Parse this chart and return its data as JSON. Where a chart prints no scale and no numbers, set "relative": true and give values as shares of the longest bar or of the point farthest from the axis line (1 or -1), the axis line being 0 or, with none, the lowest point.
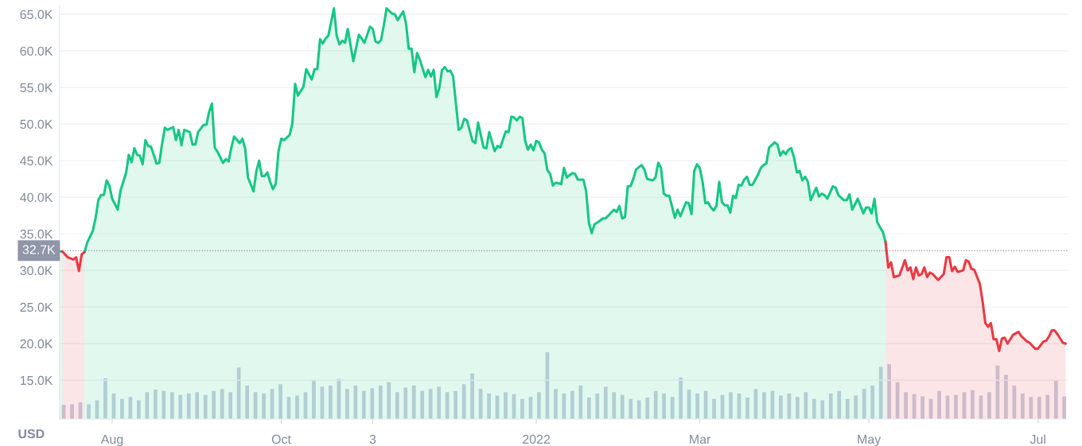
{
  "chart_data": [
    {
      "type": "area",
      "ylabel": "USD",
      "grid": "y",
      "xlim": [
        "2021-07-13",
        "2022-07-12"
      ],
      "ylim": [
        9.7,
        66.1
      ],
      "xticks": [
        {
          "value": "2021-08-01",
          "label": "Aug"
        },
        {
          "value": "2021-10-01",
          "label": "Oct"
        },
        {
          "value": "2021-11-03",
          "label": "3"
        },
        {
          "value": "2022-01-01",
          "label": "2022"
        },
        {
          "value": "2022-03-01",
          "label": "Mar"
        },
        {
          "value": "2022-05-01",
          "label": "May"
        },
        {
          "value": "2022-07-01",
          "label": "Jul"
        }
      ],
      "yticks": [
        {
          "value": 15,
          "label": "15.0K"
        },
        {
          "value": 20,
          "label": "20.0K"
        },
        {
          "value": 25,
          "label": "25.0K"
        },
        {
          "value": 30,
          "label": "30.0K"
        },
        {
          "value": 35,
          "label": "35.0K"
        },
        {
          "value": 40,
          "label": "40.0K"
        },
        {
          "value": 45,
          "label": "45.0K"
        },
        {
          "value": 50,
          "label": "50.0K"
        },
        {
          "value": 55,
          "label": "55.0K"
        },
        {
          "value": 60,
          "label": "60.0K"
        },
        {
          "value": 65,
          "label": "65.0K"
        }
      ],
      "ref_lines": [
        {
          "axis": "y",
          "value": 32.7,
          "label": "32.7K",
          "color": "#8f96a8",
          "line_style": "dotted"
        }
      ],
      "series": [
        {
          "color": "#16c784",
          "x": [
            "2021-07-13",
            "2021-07-14",
            "2021-07-16",
            "2021-07-22",
            "2021-07-23",
            "2021-07-25",
            "2021-07-26",
            "2021-07-27",
            "2021-07-28",
            "2021-07-29",
            "2021-07-30",
            "2021-07-31",
            "2021-08-01",
            "2021-08-03",
            "2021-08-04",
            "2021-08-06",
            "2021-08-07",
            "2021-08-08",
            "2021-08-09",
            "2021-08-10",
            "2021-08-11",
            "2021-08-12",
            "2021-08-13",
            "2021-08-14",
            "2021-08-15",
            "2021-08-16",
            "2021-08-17",
            "2021-08-18",
            "2021-08-19",
            "2021-08-20",
            "2021-08-21",
            "2021-08-23",
            "2021-08-24",
            "2021-08-25",
            "2021-08-26",
            "2021-08-27",
            "2021-08-29",
            "2021-08-30",
            "2021-08-31",
            "2021-09-01",
            "2021-09-03",
            "2021-09-04",
            "2021-09-05",
            "2021-09-06",
            "2021-09-07",
            "2021-09-08",
            "2021-09-10",
            "2021-09-11",
            "2021-09-12",
            "2021-09-13",
            "2021-09-14",
            "2021-09-16",
            "2021-09-17",
            "2021-09-18",
            "2021-09-19",
            "2021-09-21",
            "2021-09-22",
            "2021-09-23",
            "2021-09-24",
            "2021-09-25",
            "2021-09-26",
            "2021-09-27",
            "2021-09-28",
            "2021-09-29",
            "2021-09-30",
            "2021-10-01",
            "2021-10-02",
            "2021-10-04",
            "2021-10-05",
            "2021-10-06",
            "2021-10-07",
            "2021-10-09",
            "2021-10-10",
            "2021-10-12",
            "2021-10-13",
            "2021-10-14",
            "2021-10-15",
            "2021-10-16",
            "2021-10-17",
            "2021-10-18",
            "2021-10-20",
            "2021-10-21",
            "2021-10-22",
            "2021-10-23",
            "2021-10-24",
            "2021-10-25",
            "2021-10-27",
            "2021-10-29",
            "2021-10-30",
            "2021-10-31",
            "2021-11-02",
            "2021-11-03",
            "2021-11-04",
            "2021-11-05",
            "2021-11-06",
            "2021-11-07",
            "2021-11-08",
            "2021-11-10",
            "2021-11-11",
            "2021-11-12",
            "2021-11-14",
            "2021-11-15",
            "2021-11-16",
            "2021-11-17",
            "2021-11-18",
            "2021-11-19",
            "2021-11-20",
            "2021-11-22",
            "2021-11-23",
            "2021-11-24",
            "2021-11-25",
            "2021-11-26",
            "2021-11-27",
            "2021-11-28",
            "2021-11-29",
            "2021-11-30",
            "2021-12-01",
            "2021-12-02",
            "2021-12-04",
            "2021-12-05",
            "2021-12-06",
            "2021-12-07",
            "2021-12-09",
            "2021-12-10",
            "2021-12-11",
            "2021-12-13",
            "2021-12-14",
            "2021-12-15",
            "2021-12-17",
            "2021-12-18",
            "2021-12-19",
            "2021-12-21",
            "2021-12-22",
            "2021-12-23",
            "2021-12-24",
            "2021-12-25",
            "2021-12-26",
            "2021-12-27",
            "2021-12-28",
            "2021-12-29",
            "2021-12-30",
            "2021-12-31",
            "2022-01-01",
            "2022-01-02",
            "2022-01-03",
            "2022-01-04",
            "2022-01-05",
            "2022-01-06",
            "2022-01-07",
            "2022-01-08",
            "2022-01-10",
            "2022-01-11",
            "2022-01-12",
            "2022-01-14",
            "2022-01-15",
            "2022-01-16",
            "2022-01-18",
            "2022-01-19",
            "2022-01-20",
            "2022-01-21",
            "2022-01-22",
            "2022-01-24",
            "2022-01-25",
            "2022-01-26",
            "2022-01-28",
            "2022-01-29",
            "2022-01-30",
            "2022-01-31",
            "2022-02-01",
            "2022-02-02",
            "2022-02-03",
            "2022-02-04",
            "2022-02-05",
            "2022-02-06",
            "2022-02-08",
            "2022-02-09",
            "2022-02-10",
            "2022-02-12",
            "2022-02-13",
            "2022-02-14",
            "2022-02-15",
            "2022-02-16",
            "2022-02-17",
            "2022-02-18",
            "2022-02-20",
            "2022-02-21",
            "2022-02-22",
            "2022-02-24",
            "2022-02-25",
            "2022-02-26",
            "2022-02-27",
            "2022-02-28",
            "2022-03-01",
            "2022-03-02",
            "2022-03-03",
            "2022-03-04",
            "2022-03-05",
            "2022-03-06",
            "2022-03-07",
            "2022-03-08",
            "2022-03-09",
            "2022-03-10",
            "2022-03-11",
            "2022-03-12",
            "2022-03-13",
            "2022-03-14",
            "2022-03-15",
            "2022-03-16",
            "2022-03-17",
            "2022-03-18",
            "2022-03-19",
            "2022-03-20",
            "2022-03-21",
            "2022-03-22",
            "2022-03-23",
            "2022-03-24",
            "2022-03-25",
            "2022-03-26",
            "2022-03-28",
            "2022-03-29",
            "2022-03-30",
            "2022-03-31",
            "2022-04-01",
            "2022-04-02",
            "2022-04-03",
            "2022-04-04",
            "2022-04-05",
            "2022-04-06",
            "2022-04-07",
            "2022-04-08",
            "2022-04-09",
            "2022-04-10",
            "2022-04-12",
            "2022-04-13",
            "2022-04-14",
            "2022-04-15",
            "2022-04-16",
            "2022-04-18",
            "2022-04-19",
            "2022-04-20",
            "2022-04-22",
            "2022-04-23",
            "2022-04-24",
            "2022-04-25",
            "2022-04-27",
            "2022-04-29",
            "2022-04-30",
            "2022-05-01",
            "2022-05-02",
            "2022-05-03",
            "2022-05-04",
            "2022-05-05",
            "2022-05-06",
            "2022-05-07"
          ],
          "values": [
            32.6,
            32.6,
            null,
            32.5,
            33.8,
            35.4,
            37.1,
            39.6,
            40.3,
            40.3,
            42.3,
            41.6,
            39.8,
            38.3,
            40.9,
            43.3,
            45.8,
            44.8,
            46.7,
            45.8,
            45.7,
            44.5,
            47.8,
            47.0,
            46.9,
            45.8,
            44.6,
            44.7,
            47.3,
            49.5,
            49.2,
            49.6,
            47.8,
            49.2,
            47.1,
            49.2,
            48.9,
            47.2,
            47.2,
            48.9,
            49.9,
            49.9,
            51.7,
            52.8,
            46.8,
            46.2,
            44.7,
            45.2,
            44.9,
            46.8,
            48.3,
            47.4,
            48.0,
            46.6,
            42.7,
            40.8,
            43.5,
            45.0,
            42.9,
            42.9,
            43.4,
            42.1,
            41.1,
            41.8,
            46.3,
            48.0,
            47.8,
            48.5,
            50.1,
            55.5,
            53.9,
            55.1,
            57.5,
            56.1,
            57.5,
            57.5,
            61.6,
            61.0,
            61.7,
            62.1,
            65.8,
            62.1,
            60.9,
            61.4,
            61.1,
            63.0,
            58.6,
            62.2,
            61.7,
            61.1,
            63.3,
            63.0,
            61.3,
            61.1,
            61.5,
            63.5,
            65.8,
            65.1,
            65.0,
            64.2,
            65.4,
            63.8,
            60.3,
            60.3,
            57.1,
            59.7,
            58.8,
            56.4,
            57.4,
            56.5,
            57.4,
            53.7,
            54.9,
            57.4,
            57.8,
            57.2,
            57.3,
            56.5,
            49.2,
            49.5,
            50.7,
            50.5,
            47.7,
            47.4,
            50.2,
            46.8,
            46.7,
            48.9,
            46.3,
            47.0,
            46.8,
            49.0,
            48.9,
            51.0,
            50.9,
            50.5,
            51.0,
            50.8,
            47.7,
            46.5,
            47.2,
            46.4,
            47.7,
            47.5,
            46.5,
            46.0,
            43.7,
            43.2,
            41.6,
            42.0,
            41.8,
            44.0,
            42.7,
            43.3,
            43.2,
            42.4,
            42.4,
            40.8,
            36.5,
            35.1,
            36.3,
            36.8,
            37.1,
            37.1,
            37.9,
            38.3,
            38.0,
            38.8,
            37.1,
            37.3,
            41.5,
            41.5,
            42.5,
            43.8,
            44.4,
            43.8,
            42.5,
            42.3,
            42.7,
            44.7,
            44.0,
            40.5,
            40.2,
            40.2,
            37.2,
            38.3,
            37.4,
            39.3,
            39.2,
            37.7,
            43.6,
            44.5,
            44.0,
            42.1,
            39.2,
            39.3,
            38.6,
            38.2,
            38.8,
            42.1,
            39.3,
            38.9,
            38.9,
            37.9,
            40.2,
            39.9,
            41.7,
            41.6,
            42.4,
            42.8,
            41.7,
            41.7,
            42.4,
            43.1,
            44.0,
            44.4,
            44.6,
            46.8,
            47.5,
            47.2,
            45.7,
            46.3,
            45.9,
            46.5,
            46.7,
            45.4,
            43.4,
            43.6,
            42.3,
            42.8,
            42.1,
            39.6,
            41.3,
            40.1,
            40.5,
            40.3,
            39.8,
            41.5,
            41.3,
            40.3,
            39.6,
            39.6,
            40.4,
            38.3,
            39.8,
            37.8,
            38.6,
            38.6,
            37.8,
            39.8,
            36.6,
            35.9,
            35.3,
            33.9
          ]
        },
        {
          "color": "#ea3943",
          "x": [
            "2021-07-14",
            "2021-07-16",
            "2021-07-18",
            "2021-07-19",
            "2021-07-20",
            "2021-07-21",
            "2021-07-22",
            "2021-07-23",
            "2022-05-07",
            "2022-05-08",
            "2022-05-09",
            "2022-05-10",
            "2022-05-12",
            "2022-05-14",
            "2022-05-15",
            "2022-05-16",
            "2022-05-17",
            "2022-05-18",
            "2022-05-19",
            "2022-05-20",
            "2022-05-21",
            "2022-05-22",
            "2022-05-23",
            "2022-05-24",
            "2022-05-26",
            "2022-05-28",
            "2022-05-29",
            "2022-05-30",
            "2022-05-31",
            "2022-06-01",
            "2022-06-02",
            "2022-06-04",
            "2022-06-05",
            "2022-06-06",
            "2022-06-07",
            "2022-06-08",
            "2022-06-10",
            "2022-06-11",
            "2022-06-12",
            "2022-06-13",
            "2022-06-14",
            "2022-06-15",
            "2022-06-16",
            "2022-06-17",
            "2022-06-18",
            "2022-06-19",
            "2022-06-20",
            "2022-06-22",
            "2022-06-24",
            "2022-06-25",
            "2022-06-27",
            "2022-06-28",
            "2022-06-30",
            "2022-07-01",
            "2022-07-03",
            "2022-07-04",
            "2022-07-05",
            "2022-07-06",
            "2022-07-07",
            "2022-07-08",
            "2022-07-10",
            "2022-07-11"
          ],
          "values": [
            32.6,
            31.8,
            31.5,
            31.8,
            29.9,
            32.2,
            32.5,
            null,
            33.9,
            30.4,
            31.1,
            29.1,
            29.3,
            31.4,
            30.0,
            30.4,
            28.8,
            30.4,
            29.3,
            29.5,
            30.4,
            29.1,
            29.7,
            29.5,
            28.7,
            29.5,
            31.8,
            31.8,
            29.9,
            30.5,
            29.8,
            30.0,
            31.4,
            31.2,
            30.2,
            30.1,
            28.2,
            25.8,
            22.8,
            22.3,
            22.8,
            20.6,
            20.6,
            19.0,
            20.7,
            20.8,
            20.0,
            21.2,
            21.6,
            21.0,
            20.3,
            20.1,
            19.3,
            19.3,
            20.3,
            20.4,
            21.0,
            21.8,
            21.8,
            21.3,
            20.1,
            20.0
          ]
        }
      ]
    },
    {
      "type": "bar",
      "relative": true,
      "color": "#c8cfe0",
      "categories": [
        null,
        null,
        null,
        null,
        null,
        null,
        null,
        null,
        null,
        null,
        null,
        null,
        null,
        null,
        null,
        null,
        null,
        null,
        null,
        null,
        null,
        null,
        null,
        null,
        null,
        null,
        null,
        null,
        null,
        null,
        null,
        null,
        null,
        null,
        null,
        null,
        null,
        null,
        null,
        null,
        null,
        null,
        null,
        null,
        null,
        null,
        null,
        null,
        null,
        null,
        null,
        null,
        null,
        null,
        null,
        null,
        null,
        null,
        null,
        null,
        null,
        null,
        null,
        null,
        null,
        null,
        null,
        null,
        null,
        null,
        null,
        null,
        null,
        null,
        null,
        null,
        null,
        null,
        null,
        null,
        null,
        null,
        null,
        null,
        null,
        null,
        null,
        null,
        null,
        null,
        null,
        null,
        null,
        null,
        null,
        null,
        null,
        null,
        null,
        null,
        null,
        null,
        null,
        null,
        null,
        null,
        null,
        null,
        null,
        null,
        null,
        null,
        null,
        null,
        null,
        null,
        null,
        null,
        null,
        null,
        null
      ],
      "values": [
        0.21,
        0.22,
        0.25,
        0.22,
        0.28,
        0.61,
        0.38,
        0.3,
        0.33,
        0.28,
        0.4,
        0.44,
        0.42,
        0.4,
        0.36,
        0.38,
        0.4,
        0.36,
        0.42,
        0.45,
        0.4,
        0.77,
        0.5,
        0.4,
        0.38,
        0.45,
        0.52,
        0.33,
        0.35,
        0.4,
        0.58,
        0.48,
        0.5,
        0.6,
        0.45,
        0.5,
        0.42,
        0.46,
        0.5,
        0.55,
        0.4,
        0.47,
        0.5,
        0.42,
        0.45,
        0.48,
        0.4,
        0.42,
        0.52,
        0.68,
        0.45,
        0.38,
        0.35,
        0.4,
        0.37,
        0.3,
        0.33,
        0.4,
        1.0,
        0.45,
        0.38,
        0.42,
        0.5,
        0.32,
        0.38,
        0.48,
        0.4,
        0.36,
        0.3,
        0.28,
        0.32,
        0.42,
        0.38,
        0.33,
        0.62,
        0.44,
        0.38,
        0.42,
        0.3,
        0.36,
        0.4,
        0.38,
        0.32,
        0.45,
        0.4,
        0.42,
        0.35,
        0.38,
        0.33,
        0.4,
        0.3,
        0.28,
        0.38,
        0.42,
        0.3,
        0.35,
        0.45,
        0.5,
        0.78,
        0.82,
        0.55,
        0.4,
        0.37,
        0.34,
        0.3,
        0.42,
        0.35,
        0.36,
        0.4,
        0.43,
        0.35,
        0.4,
        0.8,
        0.66,
        0.5,
        0.38,
        0.33,
        0.33,
        0.36,
        0.57,
        0.34
      ]
    }
  ]
}
